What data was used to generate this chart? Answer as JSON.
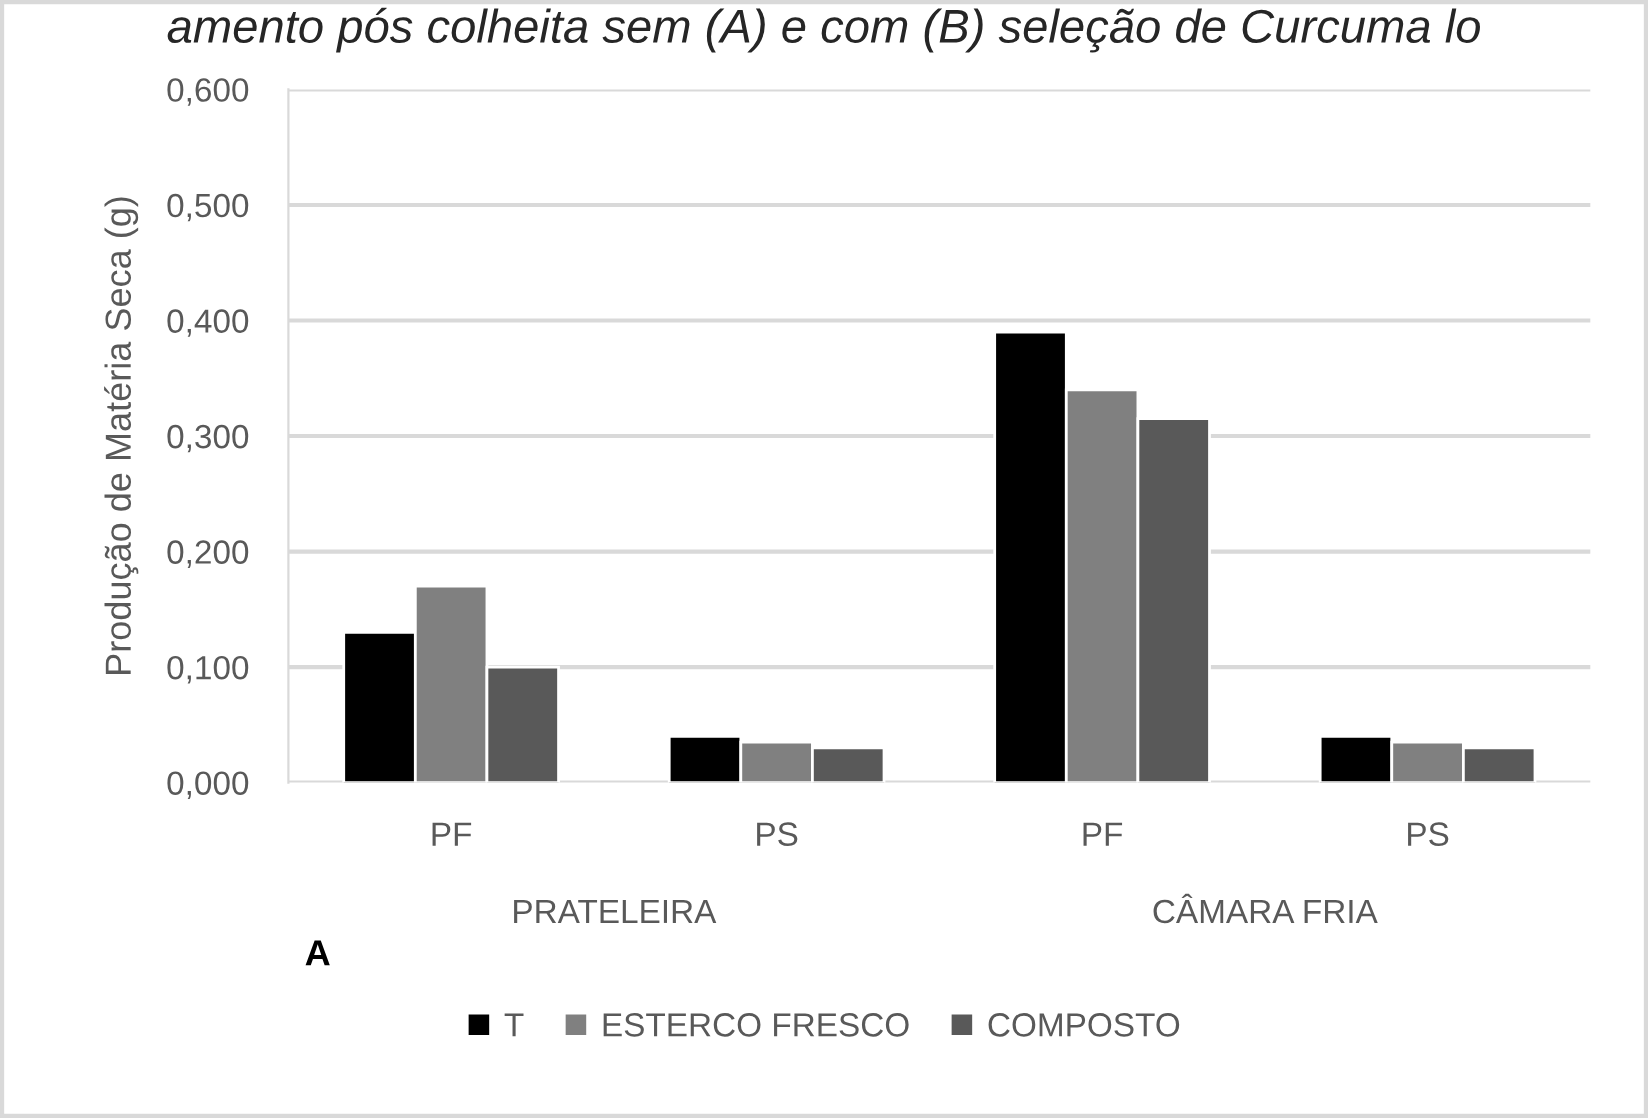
{
  "chart_data": {
    "type": "bar",
    "title": "amento pós colheita sem (A) e com (B) seleção de Curcuma lo",
    "ylabel": "Produção de Matéria Seca (g)",
    "categories": [
      "PF",
      "PS",
      "PF",
      "PS"
    ],
    "series": [
      {
        "name": "T",
        "color": "#000000",
        "values": [
          0.13,
          0.04,
          0.39,
          0.04
        ]
      },
      {
        "name": "ESTERCO FRESCO",
        "color": "#808080",
        "values": [
          0.17,
          0.035,
          0.34,
          0.035
        ]
      },
      {
        "name": "COMPOSTO",
        "color": "#595959",
        "values": [
          0.1,
          0.03,
          0.315,
          0.03
        ]
      }
    ],
    "annotations": [
      "PRATELEIRA",
      "CÂMARA FRIA",
      "A"
    ],
    "ylim": [
      0,
      0.6
    ],
    "yticks": [
      {
        "value": 0,
        "label": "0,000"
      },
      {
        "value": 0.1,
        "label": "0,100"
      },
      {
        "value": 0.2,
        "label": "0,200"
      },
      {
        "value": 0.3,
        "label": "0,300"
      },
      {
        "value": 0.4,
        "label": "0,400"
      },
      {
        "value": 0.5,
        "label": "0,500"
      },
      {
        "value": 0.6,
        "label": "0,600"
      }
    ],
    "grid": "y",
    "legend": "bottom"
  }
}
